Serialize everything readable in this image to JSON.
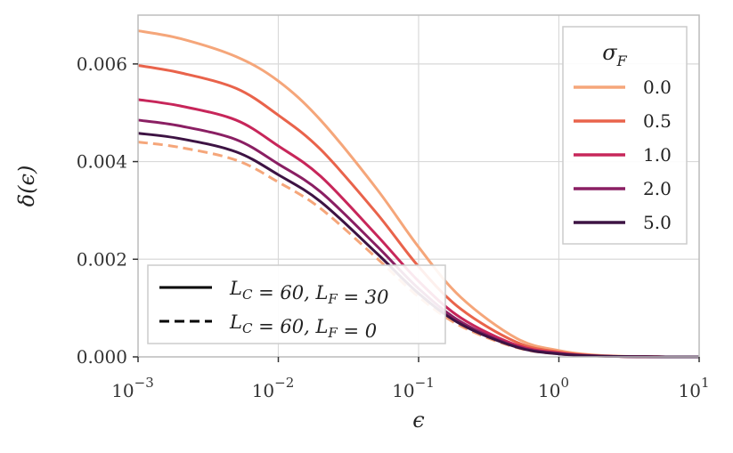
{
  "chart_data": {
    "type": "line",
    "xlabel": "ϵ",
    "ylabel": "δ(ϵ)",
    "xscale": "log",
    "xlim": [
      0.001,
      10
    ],
    "ylim": [
      0,
      0.007
    ],
    "grid": true,
    "x_ticks": [
      {
        "value": 0.001,
        "base": "10",
        "exp": "−3"
      },
      {
        "value": 0.01,
        "base": "10",
        "exp": "−2"
      },
      {
        "value": 0.1,
        "base": "10",
        "exp": "−1"
      },
      {
        "value": 1,
        "base": "10",
        "exp": "0"
      },
      {
        "value": 10,
        "base": "10",
        "exp": "1"
      }
    ],
    "y_ticks": [
      {
        "value": 0.0,
        "label": "0.000"
      },
      {
        "value": 0.002,
        "label": "0.002"
      },
      {
        "value": 0.004,
        "label": "0.004"
      },
      {
        "value": 0.006,
        "label": "0.006"
      }
    ],
    "x": [
      0.001,
      0.002,
      0.005,
      0.01,
      0.02,
      0.05,
      0.1,
      0.2,
      0.5,
      1,
      2,
      5,
      10
    ],
    "series": [
      {
        "name": "0.0",
        "color": "#f5a67a",
        "style": "solid",
        "values": [
          0.00668,
          0.00652,
          0.00615,
          0.00565,
          0.00485,
          0.00345,
          0.00225,
          0.00122,
          0.00038,
          0.00013,
          3e-05,
          3e-06,
          0.0
        ]
      },
      {
        "name": "0.5",
        "color": "#e9634b",
        "style": "solid",
        "values": [
          0.00597,
          0.00582,
          0.0055,
          0.00495,
          0.00425,
          0.00295,
          0.00185,
          0.00098,
          0.0003,
          0.0001,
          2e-05,
          2e-06,
          0.0
        ]
      },
      {
        "name": "1.0",
        "color": "#c7265a",
        "style": "solid",
        "values": [
          0.00527,
          0.00514,
          0.00485,
          0.00432,
          0.0037,
          0.0025,
          0.00155,
          0.0008,
          0.00024,
          8e-05,
          1.8e-05,
          2e-06,
          0.0
        ]
      },
      {
        "name": "2.0",
        "color": "#8a1f63",
        "style": "solid",
        "values": [
          0.00485,
          0.00473,
          0.00445,
          0.00395,
          0.00338,
          0.00228,
          0.0014,
          0.00072,
          0.00021,
          7e-05,
          1.6e-05,
          2e-06,
          0.0
        ]
      },
      {
        "name": "5.0",
        "color": "#3d1343",
        "style": "solid",
        "values": [
          0.00458,
          0.00447,
          0.0042,
          0.00373,
          0.00318,
          0.00213,
          0.0013,
          0.00067,
          0.0002,
          6e-05,
          1.5e-05,
          2e-06,
          0.0
        ]
      },
      {
        "color": "#f5a67a",
        "style": "dashed",
        "values": [
          0.0044,
          0.00429,
          0.00403,
          0.00358,
          0.00304,
          0.00203,
          0.00123,
          0.00063,
          0.00019,
          6e-05,
          1.4e-05,
          2e-06,
          0.0
        ]
      }
    ],
    "legend_colors": {
      "title": "σ",
      "title_sub": "F",
      "placement": "upper right",
      "entries": [
        "0.0",
        "0.5",
        "1.0",
        "2.0",
        "5.0"
      ]
    },
    "legend_styles": {
      "placement": "lower left",
      "entries": [
        {
          "style": "solid",
          "text": "L_C = 60, L_F = 30"
        },
        {
          "style": "dashed",
          "text": "L_C = 60, L_F = 0"
        }
      ]
    }
  }
}
